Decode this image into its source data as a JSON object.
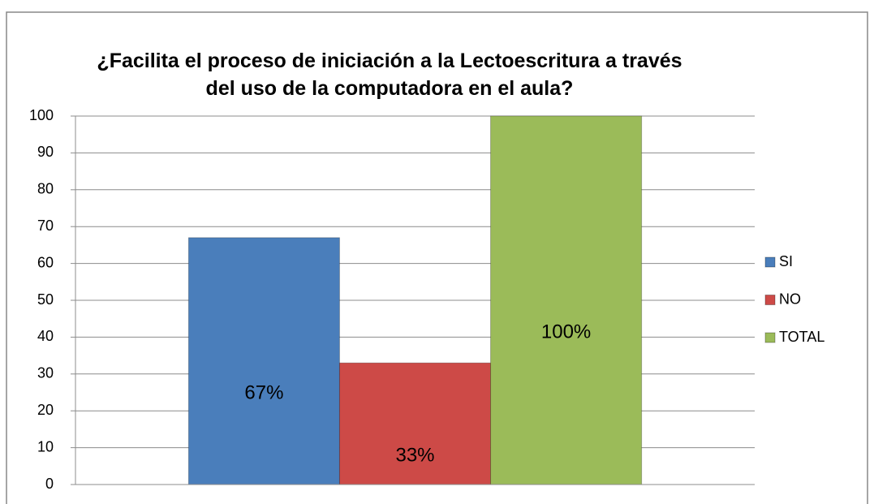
{
  "chart_data": {
    "type": "bar",
    "title": "¿Facilita el proceso de iniciación a la Lectoescritura a través del uso de la computadora en el aula?",
    "categories": [
      null
    ],
    "series": [
      {
        "name": "SI",
        "color": "#4a7ebb",
        "values": [
          67
        ],
        "value_labels": [
          "67%"
        ]
      },
      {
        "name": "NO",
        "color": "#cd4a47",
        "values": [
          33
        ],
        "value_labels": [
          "33%"
        ]
      },
      {
        "name": "TOTAL",
        "color": "#9bbb59",
        "values": [
          100
        ],
        "value_labels": [
          "100%"
        ]
      }
    ],
    "ylim": [
      0,
      100
    ],
    "yticks": [
      0,
      10,
      20,
      30,
      40,
      50,
      60,
      70,
      80,
      90,
      100
    ],
    "grid": true,
    "legend": "right"
  }
}
